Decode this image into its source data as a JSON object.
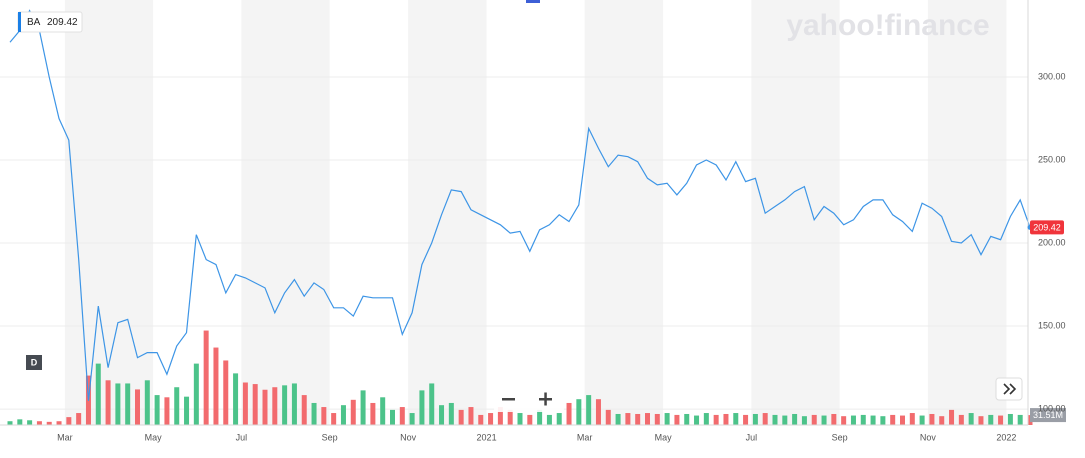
{
  "chart_data": {
    "type": "line",
    "watermark": "yahoo!finance",
    "interval": "D",
    "categories": [
      null,
      null,
      null,
      null,
      null,
      null,
      "Mar",
      null,
      null,
      null,
      null,
      null,
      null,
      null,
      null,
      "May",
      null,
      null,
      null,
      null,
      null,
      null,
      null,
      null,
      "Jul",
      null,
      null,
      null,
      null,
      null,
      null,
      null,
      null,
      "Sep",
      null,
      null,
      null,
      null,
      null,
      null,
      null,
      "Nov",
      null,
      null,
      null,
      null,
      null,
      null,
      null,
      "2021",
      null,
      null,
      null,
      null,
      null,
      null,
      null,
      null,
      null,
      "Mar",
      null,
      null,
      null,
      null,
      null,
      null,
      null,
      "May",
      null,
      null,
      null,
      null,
      null,
      null,
      null,
      null,
      "Jul",
      null,
      null,
      null,
      null,
      null,
      null,
      null,
      null,
      "Sep",
      null,
      null,
      null,
      null,
      null,
      null,
      null,
      null,
      "Nov",
      null,
      null,
      null,
      null,
      null,
      null,
      null,
      "2022",
      null,
      null
    ],
    "series": [
      {
        "name": "BA",
        "color": "#3d95e6",
        "values": [
          321,
          328,
          340,
          328,
          300,
          275,
          262,
          190,
          105,
          162,
          125,
          152,
          154,
          131,
          134,
          134,
          121,
          138,
          146,
          205,
          190,
          187,
          170,
          181,
          179,
          176,
          173,
          158,
          170,
          178,
          168,
          176,
          172,
          161,
          161,
          156,
          168,
          167,
          167,
          167,
          145,
          158,
          187,
          200,
          217,
          232,
          231,
          220,
          217,
          214,
          211,
          206,
          207,
          195,
          208,
          211,
          217,
          213,
          223,
          269,
          257,
          246,
          253,
          252,
          249,
          239,
          235,
          236,
          229,
          236,
          247,
          250,
          247,
          238,
          249,
          237,
          239,
          218,
          222,
          226,
          231,
          234,
          214,
          222,
          218,
          211,
          214,
          222,
          226,
          226,
          217,
          213,
          207,
          224,
          221,
          216,
          201,
          200,
          205,
          193,
          204,
          202,
          216,
          226,
          209.42
        ]
      }
    ],
    "volume": {
      "axis": "y2",
      "up_color": "#4cc38a",
      "down_color": "#f26b6e",
      "values": [
        12,
        18,
        15,
        12,
        10,
        12,
        25,
        38,
        157,
        195,
        142,
        132,
        132,
        113,
        142,
        95,
        88,
        120,
        90,
        195,
        300,
        246,
        205,
        164,
        135,
        130,
        112,
        120,
        126,
        132,
        95,
        70,
        57,
        38,
        63,
        80,
        110,
        70,
        88,
        48,
        57,
        38,
        110,
        132,
        63,
        70,
        48,
        57,
        32,
        38,
        57,
        48,
        38,
        32,
        48,
        32,
        38,
        70,
        82,
        95,
        82,
        48,
        35,
        38,
        35,
        38,
        35,
        38,
        32,
        35,
        30,
        38,
        32,
        35,
        38,
        32,
        35,
        38,
        32,
        30,
        35,
        28,
        32,
        30,
        35,
        28,
        30,
        32,
        30,
        28,
        32,
        30,
        38,
        30,
        35,
        28,
        48,
        32,
        38,
        28,
        32,
        30,
        35,
        32,
        31.51
      ],
      "value_labels": [
        null,
        null,
        null,
        null,
        null,
        null,
        null,
        null,
        null,
        null,
        null,
        null,
        null,
        null,
        null,
        null,
        null,
        null,
        null,
        null,
        null,
        null,
        null,
        null,
        null,
        null,
        null,
        null,
        null,
        null,
        null,
        null,
        null,
        null,
        null,
        null,
        null,
        null,
        null,
        null,
        null,
        null,
        null,
        null,
        null,
        null,
        null,
        null,
        null,
        null,
        null,
        null,
        null,
        null,
        null,
        null,
        null,
        null,
        null,
        null,
        null,
        null,
        null,
        null,
        null,
        null,
        null,
        null,
        null,
        null,
        null,
        null,
        null,
        null,
        null,
        null,
        null,
        null,
        null,
        null,
        null,
        null,
        null,
        null,
        null,
        null,
        null,
        null,
        null,
        null,
        null,
        null,
        null,
        null,
        null,
        null,
        null,
        null,
        null,
        null,
        null,
        null,
        null,
        null,
        "31.51M"
      ]
    },
    "ylim": [
      90.4,
      346.4
    ],
    "yticks": [
      {
        "value": 100,
        "label": "100.00"
      },
      {
        "value": 150,
        "label": "150.00"
      },
      {
        "value": 200,
        "label": "200.00"
      },
      {
        "value": 250,
        "label": "250.00"
      },
      {
        "value": 300,
        "label": "300.00"
      }
    ],
    "y2lim": [
      0,
      1350
    ],
    "grid": true
  }
}
